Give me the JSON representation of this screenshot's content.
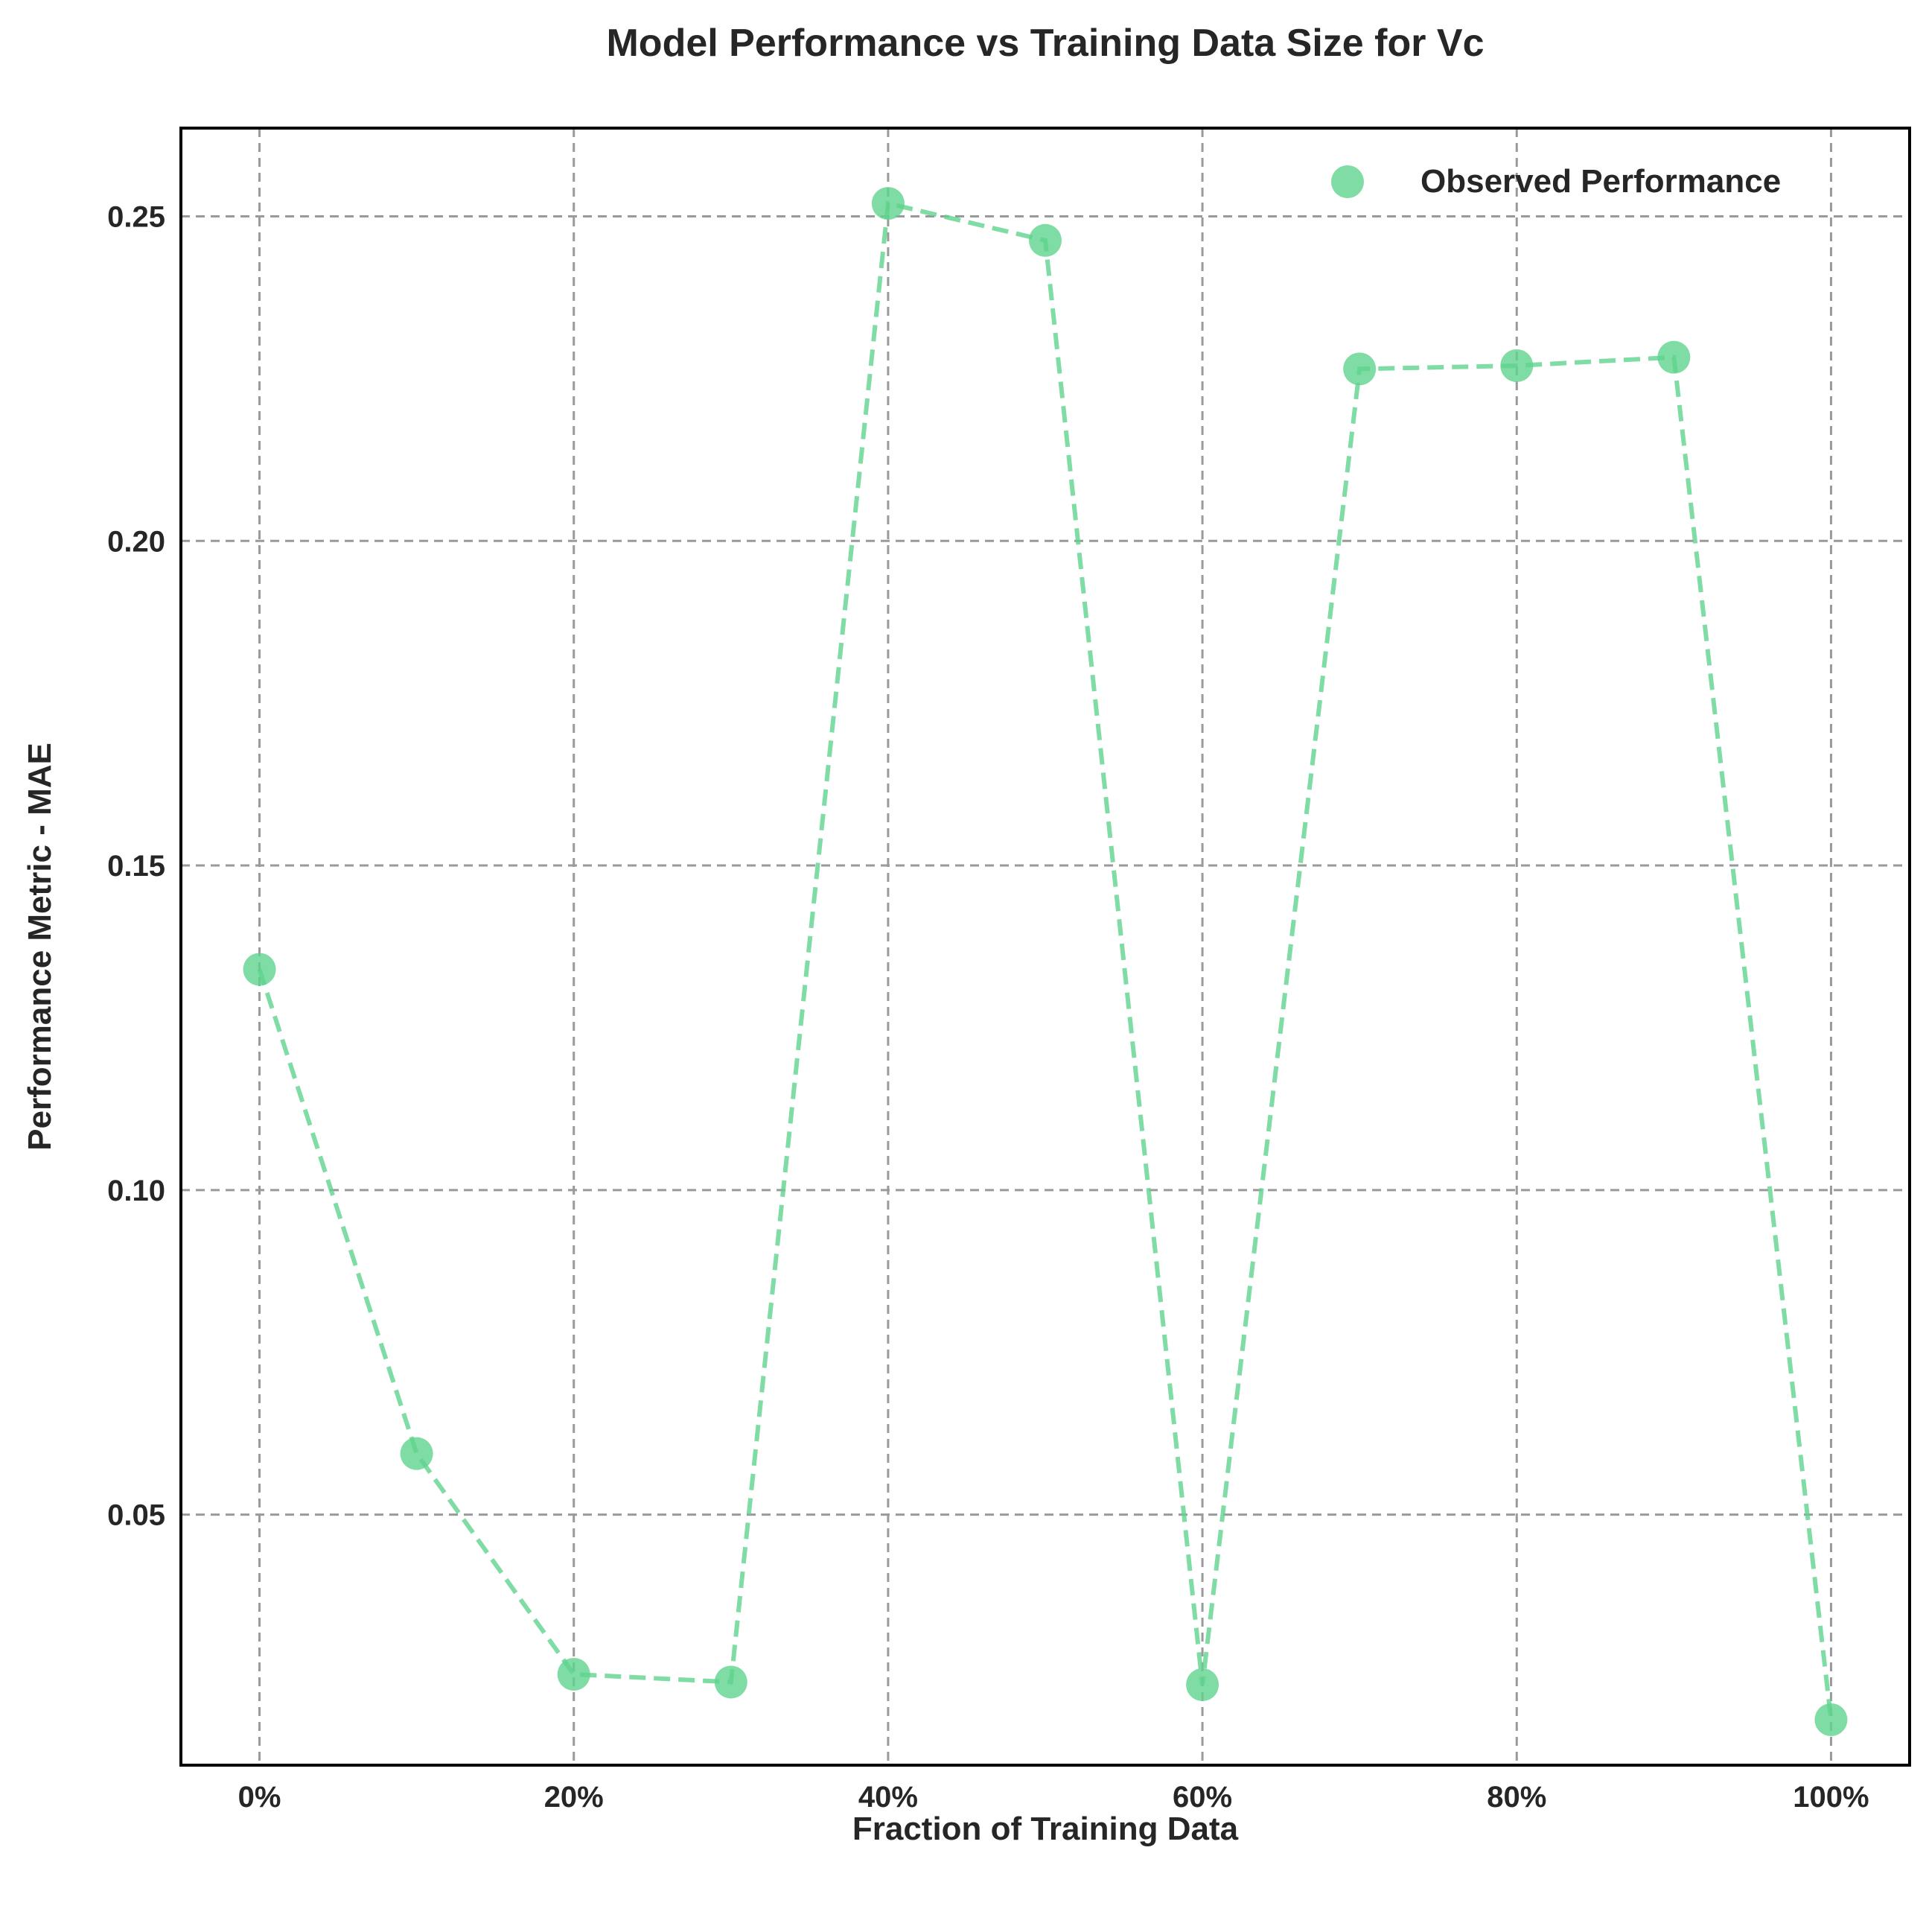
{
  "chart_data": {
    "type": "scatter",
    "title": "Model Performance vs Training Data Size for Vc",
    "xlabel": "Fraction of Training Data",
    "ylabel": "Performance Metric - MAE",
    "xlim": [
      -0.05,
      1.05
    ],
    "ylim": [
      0.0114,
      0.2636
    ],
    "x_ticks": [
      0,
      0.2,
      0.4,
      0.6,
      0.8,
      1.0
    ],
    "x_tick_labels": [
      "0%",
      "20%",
      "40%",
      "60%",
      "80%",
      "100%"
    ],
    "y_ticks": [
      0.05,
      0.1,
      0.15,
      0.2,
      0.25
    ],
    "y_tick_labels": [
      "0.05",
      "0.10",
      "0.15",
      "0.20",
      "0.25"
    ],
    "grid": true,
    "legend_position": "top-right",
    "series": [
      {
        "name": "Observed Performance",
        "color": "#5fd38d",
        "line_style": "dashed",
        "x": [
          0.0,
          0.1,
          0.2,
          0.3,
          0.4,
          0.5,
          0.6,
          0.7,
          0.8,
          0.9,
          1.0
        ],
        "y": [
          0.134,
          0.0594,
          0.0254,
          0.0242,
          0.252,
          0.2463,
          0.0238,
          0.2265,
          0.227,
          0.2283,
          0.0184
        ]
      }
    ]
  }
}
